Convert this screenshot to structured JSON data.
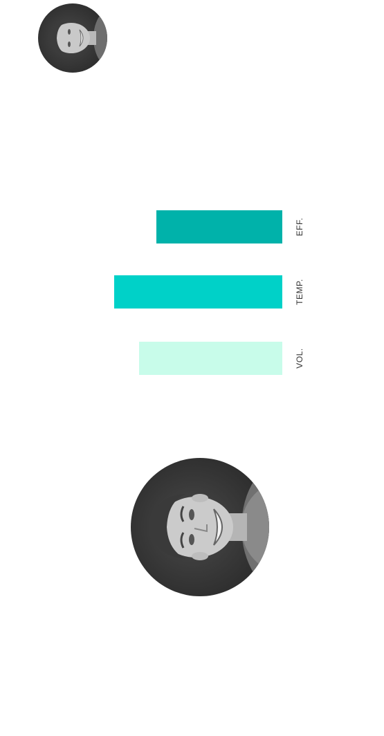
{
  "profile": {
    "avatar_small_icon": "user-photo-avatar",
    "avatar_large_icon": "user-photo-avatar"
  },
  "stats": [
    {
      "label": "EFF.",
      "level": 0.75,
      "color": "#00b2aa"
    },
    {
      "label": "TEMP.",
      "level": 1.0,
      "color": "#00d1c8"
    },
    {
      "label": "VOL.",
      "level": 0.85,
      "color": "#c8fcea"
    }
  ]
}
